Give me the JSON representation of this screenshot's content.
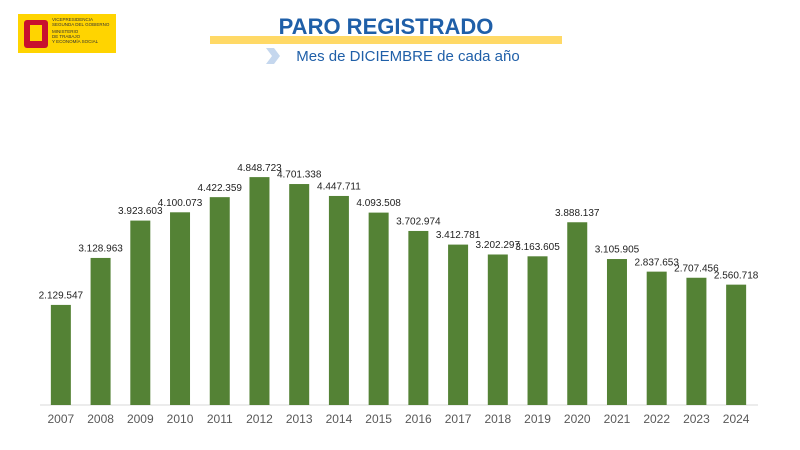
{
  "logo": {
    "lines": [
      "VICEPRESIDENCIA",
      "SEGUNDA DEL GOBIERNO",
      "MINISTERIO",
      "DE TRABAJO",
      "Y ECONOMÍA SOCIAL"
    ]
  },
  "chart_data": {
    "type": "bar",
    "title": "PARO REGISTRADO",
    "subtitle": "Mes de DICIEMBRE de cada año",
    "categories": [
      "2007",
      "2008",
      "2009",
      "2010",
      "2011",
      "2012",
      "2013",
      "2014",
      "2015",
      "2016",
      "2017",
      "2018",
      "2019",
      "2020",
      "2021",
      "2022",
      "2023",
      "2024"
    ],
    "values": [
      2129547,
      3128963,
      3923603,
      4100073,
      4422359,
      4848723,
      4701338,
      4447711,
      4093508,
      3702974,
      3412781,
      3202297,
      3163605,
      3888137,
      3105905,
      2837653,
      2707456,
      2560718
    ],
    "value_labels": [
      "2.129.547",
      "3.128.963",
      "3.923.603",
      "4.100.073",
      "4.422.359",
      "4.848.723",
      "4.701.338",
      "4.447.711",
      "4.093.508",
      "3.702.974",
      "3.412.781",
      "3.202.297",
      "3.163.605",
      "3.888.137",
      "3.105.905",
      "2.837.653",
      "2.707.456",
      "2.560.718"
    ],
    "color": "#548235",
    "ylim": [
      0,
      6000000
    ]
  }
}
